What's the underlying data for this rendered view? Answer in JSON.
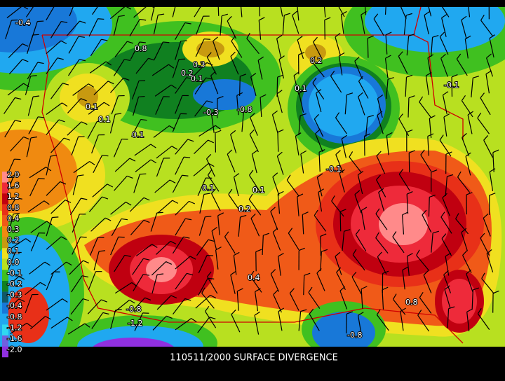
{
  "title": "110511/2000 SURFACE DIVERGENCE",
  "legend": [
    {
      "label": "2.0",
      "color": "#ff8a8a"
    },
    {
      "label": "1.6",
      "color": "#ee2a3a"
    },
    {
      "label": "1.2",
      "color": "#c00010"
    },
    {
      "label": "0.8",
      "color": "#e83018"
    },
    {
      "label": "0.4",
      "color": "#f05a18"
    },
    {
      "label": "0.3",
      "color": "#f08a10"
    },
    {
      "label": "0.2",
      "color": "#c89a10"
    },
    {
      "label": "0.1",
      "color": "#f0e020"
    },
    {
      "label": "0.0",
      "color": "#b8e020"
    },
    {
      "label": "-0.1",
      "color": "#40c020"
    },
    {
      "label": "-0.2",
      "color": "#108020"
    },
    {
      "label": "-0.3",
      "color": "#105868"
    },
    {
      "label": "-0.4",
      "color": "#1878d8"
    },
    {
      "label": "-0.8",
      "color": "#20a8f0"
    },
    {
      "label": "-1.2",
      "color": "#30d8f0"
    },
    {
      "label": "-1.6",
      "color": "#7060e0"
    },
    {
      "label": "-2.0",
      "color": "#9030e0"
    }
  ],
  "contour_labels": [
    "-0.4",
    "0.8",
    "0.3",
    "0.2",
    "0.1",
    "0.2",
    "0.1",
    "0.1",
    "-0.3",
    "-0.8",
    "0.1",
    "0.1",
    "0.1",
    "-0.1",
    "0.2",
    "0.4",
    "0.8",
    "-0.8",
    "-0.1",
    "0.1",
    "-0.8",
    "-1.2"
  ]
}
